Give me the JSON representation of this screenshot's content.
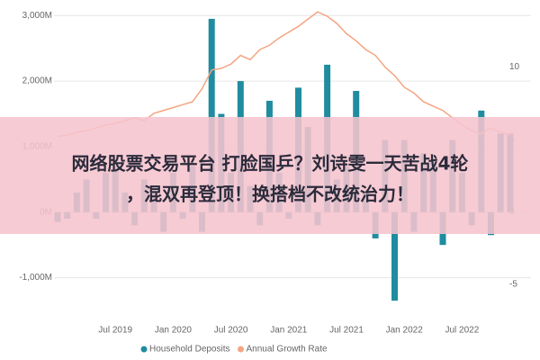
{
  "chart_data": {
    "type": "combo",
    "categories": [
      null,
      null,
      null,
      null,
      null,
      null,
      "Jul 2019",
      null,
      null,
      null,
      null,
      null,
      "Jan 2020",
      null,
      null,
      null,
      null,
      null,
      "Jul 2020",
      null,
      null,
      null,
      null,
      null,
      "Jan 2021",
      null,
      null,
      null,
      null,
      null,
      "Jul 2021",
      null,
      null,
      null,
      null,
      null,
      "Jan 2022",
      null,
      null,
      null,
      null,
      null,
      "Jul 2022",
      null,
      null,
      null,
      null,
      null
    ],
    "series": [
      {
        "name": "Household Deposits",
        "type": "bar",
        "color": "#1f8ca0",
        "values": [
          -150,
          -100,
          300,
          500,
          -100,
          600,
          700,
          300,
          -200,
          500,
          400,
          -300,
          600,
          -100,
          700,
          -300,
          2950,
          1500,
          600,
          2000,
          400,
          -200,
          1700,
          600,
          -100,
          1900,
          1300,
          -200,
          2250,
          500,
          700,
          1850,
          300,
          -400,
          1100,
          -1350,
          1100,
          -300,
          900,
          800,
          -500,
          1100,
          600,
          -200,
          1550,
          -350,
          1200,
          1200
        ]
      },
      {
        "name": "Annual Growth Rate",
        "type": "line",
        "axis": "y2",
        "color": "#f4a582",
        "values": [
          5.2,
          5.3,
          5.5,
          5.6,
          5.8,
          6,
          6.1,
          6.3,
          6.5,
          6.3,
          6.8,
          7,
          7.2,
          7.4,
          7.6,
          8.5,
          9.8,
          9.9,
          10.2,
          10.8,
          10.5,
          11.2,
          11.5,
          12,
          12.4,
          12.8,
          13.3,
          13.8,
          13.5,
          13,
          12.3,
          11.8,
          11.2,
          10.8,
          10,
          9.4,
          8.6,
          8.2,
          7.6,
          7.3,
          7,
          6.5,
          6,
          5.6,
          5.4,
          5.8,
          5.5,
          5.3
        ]
      }
    ],
    "ylim": [
      -1500,
      3100
    ],
    "yticks": [
      {
        "value": -1000,
        "label": "-1,000M"
      },
      {
        "value": 0,
        "label": "0M"
      },
      {
        "value": 1000,
        "label": "1,000M"
      },
      {
        "value": 2000,
        "label": "2,000M"
      },
      {
        "value": 3000,
        "label": "3,000M"
      }
    ],
    "y2lim": [
      -6.8,
      14
    ],
    "y2ticks": [
      -5,
      0,
      5,
      10
    ],
    "grid": true
  },
  "overlay": {
    "lines": [
      "网络股票交易平台 打脸国乒？刘诗雯一天苦战4轮",
      "，混双再登顶！换搭档不改统治力！"
    ]
  }
}
